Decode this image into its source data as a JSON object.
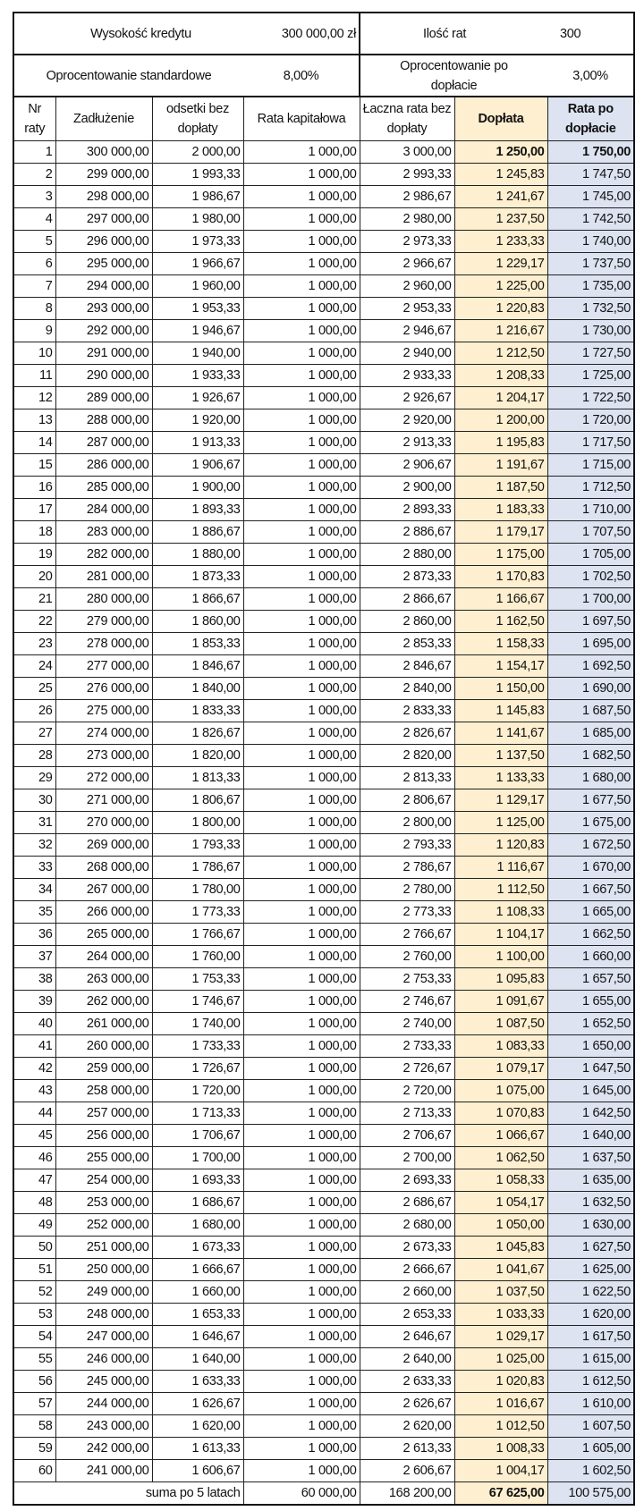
{
  "summary": {
    "loan_label": "Wysokość kredytu",
    "loan_value": "300 000,00 zł",
    "installments_label": "Ilość rat",
    "installments_value": "300",
    "std_rate_label": "Oprocentowanie standardowe",
    "std_rate_value": "8,00%",
    "new_rate_label": "Oprocentowanie po dopłacie",
    "new_rate_value": "3,00%"
  },
  "headers": [
    "Nr raty",
    "Zadłużenie",
    "odsetki bez dopłaty",
    "Rata kapitałowa",
    "Łaczna rata bez dopłaty",
    "Dopłata",
    "Rata po dopłacie"
  ],
  "colors": {
    "doplata": "#fdefcf",
    "rata_po_doplacie": "#dde3f1"
  },
  "rows": [
    [
      "1",
      "300 000,00",
      "2 000,00",
      "1 000,00",
      "3 000,00",
      "1 250,00",
      "1 750,00"
    ],
    [
      "2",
      "299 000,00",
      "1 993,33",
      "1 000,00",
      "2 993,33",
      "1 245,83",
      "1 747,50"
    ],
    [
      "3",
      "298 000,00",
      "1 986,67",
      "1 000,00",
      "2 986,67",
      "1 241,67",
      "1 745,00"
    ],
    [
      "4",
      "297 000,00",
      "1 980,00",
      "1 000,00",
      "2 980,00",
      "1 237,50",
      "1 742,50"
    ],
    [
      "5",
      "296 000,00",
      "1 973,33",
      "1 000,00",
      "2 973,33",
      "1 233,33",
      "1 740,00"
    ],
    [
      "6",
      "295 000,00",
      "1 966,67",
      "1 000,00",
      "2 966,67",
      "1 229,17",
      "1 737,50"
    ],
    [
      "7",
      "294 000,00",
      "1 960,00",
      "1 000,00",
      "2 960,00",
      "1 225,00",
      "1 735,00"
    ],
    [
      "8",
      "293 000,00",
      "1 953,33",
      "1 000,00",
      "2 953,33",
      "1 220,83",
      "1 732,50"
    ],
    [
      "9",
      "292 000,00",
      "1 946,67",
      "1 000,00",
      "2 946,67",
      "1 216,67",
      "1 730,00"
    ],
    [
      "10",
      "291 000,00",
      "1 940,00",
      "1 000,00",
      "2 940,00",
      "1 212,50",
      "1 727,50"
    ],
    [
      "11",
      "290 000,00",
      "1 933,33",
      "1 000,00",
      "2 933,33",
      "1 208,33",
      "1 725,00"
    ],
    [
      "12",
      "289 000,00",
      "1 926,67",
      "1 000,00",
      "2 926,67",
      "1 204,17",
      "1 722,50"
    ],
    [
      "13",
      "288 000,00",
      "1 920,00",
      "1 000,00",
      "2 920,00",
      "1 200,00",
      "1 720,00"
    ],
    [
      "14",
      "287 000,00",
      "1 913,33",
      "1 000,00",
      "2 913,33",
      "1 195,83",
      "1 717,50"
    ],
    [
      "15",
      "286 000,00",
      "1 906,67",
      "1 000,00",
      "2 906,67",
      "1 191,67",
      "1 715,00"
    ],
    [
      "16",
      "285 000,00",
      "1 900,00",
      "1 000,00",
      "2 900,00",
      "1 187,50",
      "1 712,50"
    ],
    [
      "17",
      "284 000,00",
      "1 893,33",
      "1 000,00",
      "2 893,33",
      "1 183,33",
      "1 710,00"
    ],
    [
      "18",
      "283 000,00",
      "1 886,67",
      "1 000,00",
      "2 886,67",
      "1 179,17",
      "1 707,50"
    ],
    [
      "19",
      "282 000,00",
      "1 880,00",
      "1 000,00",
      "2 880,00",
      "1 175,00",
      "1 705,00"
    ],
    [
      "20",
      "281 000,00",
      "1 873,33",
      "1 000,00",
      "2 873,33",
      "1 170,83",
      "1 702,50"
    ],
    [
      "21",
      "280 000,00",
      "1 866,67",
      "1 000,00",
      "2 866,67",
      "1 166,67",
      "1 700,00"
    ],
    [
      "22",
      "279 000,00",
      "1 860,00",
      "1 000,00",
      "2 860,00",
      "1 162,50",
      "1 697,50"
    ],
    [
      "23",
      "278 000,00",
      "1 853,33",
      "1 000,00",
      "2 853,33",
      "1 158,33",
      "1 695,00"
    ],
    [
      "24",
      "277 000,00",
      "1 846,67",
      "1 000,00",
      "2 846,67",
      "1 154,17",
      "1 692,50"
    ],
    [
      "25",
      "276 000,00",
      "1 840,00",
      "1 000,00",
      "2 840,00",
      "1 150,00",
      "1 690,00"
    ],
    [
      "26",
      "275 000,00",
      "1 833,33",
      "1 000,00",
      "2 833,33",
      "1 145,83",
      "1 687,50"
    ],
    [
      "27",
      "274 000,00",
      "1 826,67",
      "1 000,00",
      "2 826,67",
      "1 141,67",
      "1 685,00"
    ],
    [
      "28",
      "273 000,00",
      "1 820,00",
      "1 000,00",
      "2 820,00",
      "1 137,50",
      "1 682,50"
    ],
    [
      "29",
      "272 000,00",
      "1 813,33",
      "1 000,00",
      "2 813,33",
      "1 133,33",
      "1 680,00"
    ],
    [
      "30",
      "271 000,00",
      "1 806,67",
      "1 000,00",
      "2 806,67",
      "1 129,17",
      "1 677,50"
    ],
    [
      "31",
      "270 000,00",
      "1 800,00",
      "1 000,00",
      "2 800,00",
      "1 125,00",
      "1 675,00"
    ],
    [
      "32",
      "269 000,00",
      "1 793,33",
      "1 000,00",
      "2 793,33",
      "1 120,83",
      "1 672,50"
    ],
    [
      "33",
      "268 000,00",
      "1 786,67",
      "1 000,00",
      "2 786,67",
      "1 116,67",
      "1 670,00"
    ],
    [
      "34",
      "267 000,00",
      "1 780,00",
      "1 000,00",
      "2 780,00",
      "1 112,50",
      "1 667,50"
    ],
    [
      "35",
      "266 000,00",
      "1 773,33",
      "1 000,00",
      "2 773,33",
      "1 108,33",
      "1 665,00"
    ],
    [
      "36",
      "265 000,00",
      "1 766,67",
      "1 000,00",
      "2 766,67",
      "1 104,17",
      "1 662,50"
    ],
    [
      "37",
      "264 000,00",
      "1 760,00",
      "1 000,00",
      "2 760,00",
      "1 100,00",
      "1 660,00"
    ],
    [
      "38",
      "263 000,00",
      "1 753,33",
      "1 000,00",
      "2 753,33",
      "1 095,83",
      "1 657,50"
    ],
    [
      "39",
      "262 000,00",
      "1 746,67",
      "1 000,00",
      "2 746,67",
      "1 091,67",
      "1 655,00"
    ],
    [
      "40",
      "261 000,00",
      "1 740,00",
      "1 000,00",
      "2 740,00",
      "1 087,50",
      "1 652,50"
    ],
    [
      "41",
      "260 000,00",
      "1 733,33",
      "1 000,00",
      "2 733,33",
      "1 083,33",
      "1 650,00"
    ],
    [
      "42",
      "259 000,00",
      "1 726,67",
      "1 000,00",
      "2 726,67",
      "1 079,17",
      "1 647,50"
    ],
    [
      "43",
      "258 000,00",
      "1 720,00",
      "1 000,00",
      "2 720,00",
      "1 075,00",
      "1 645,00"
    ],
    [
      "44",
      "257 000,00",
      "1 713,33",
      "1 000,00",
      "2 713,33",
      "1 070,83",
      "1 642,50"
    ],
    [
      "45",
      "256 000,00",
      "1 706,67",
      "1 000,00",
      "2 706,67",
      "1 066,67",
      "1 640,00"
    ],
    [
      "46",
      "255 000,00",
      "1 700,00",
      "1 000,00",
      "2 700,00",
      "1 062,50",
      "1 637,50"
    ],
    [
      "47",
      "254 000,00",
      "1 693,33",
      "1 000,00",
      "2 693,33",
      "1 058,33",
      "1 635,00"
    ],
    [
      "48",
      "253 000,00",
      "1 686,67",
      "1 000,00",
      "2 686,67",
      "1 054,17",
      "1 632,50"
    ],
    [
      "49",
      "252 000,00",
      "1 680,00",
      "1 000,00",
      "2 680,00",
      "1 050,00",
      "1 630,00"
    ],
    [
      "50",
      "251 000,00",
      "1 673,33",
      "1 000,00",
      "2 673,33",
      "1 045,83",
      "1 627,50"
    ],
    [
      "51",
      "250 000,00",
      "1 666,67",
      "1 000,00",
      "2 666,67",
      "1 041,67",
      "1 625,00"
    ],
    [
      "52",
      "249 000,00",
      "1 660,00",
      "1 000,00",
      "2 660,00",
      "1 037,50",
      "1 622,50"
    ],
    [
      "53",
      "248 000,00",
      "1 653,33",
      "1 000,00",
      "2 653,33",
      "1 033,33",
      "1 620,00"
    ],
    [
      "54",
      "247 000,00",
      "1 646,67",
      "1 000,00",
      "2 646,67",
      "1 029,17",
      "1 617,50"
    ],
    [
      "55",
      "246 000,00",
      "1 640,00",
      "1 000,00",
      "2 640,00",
      "1 025,00",
      "1 615,00"
    ],
    [
      "56",
      "245 000,00",
      "1 633,33",
      "1 000,00",
      "2 633,33",
      "1 020,83",
      "1 612,50"
    ],
    [
      "57",
      "244 000,00",
      "1 626,67",
      "1 000,00",
      "2 626,67",
      "1 016,67",
      "1 610,00"
    ],
    [
      "58",
      "243 000,00",
      "1 620,00",
      "1 000,00",
      "2 620,00",
      "1 012,50",
      "1 607,50"
    ],
    [
      "59",
      "242 000,00",
      "1 613,33",
      "1 000,00",
      "2 613,33",
      "1 008,33",
      "1 605,00"
    ],
    [
      "60",
      "241 000,00",
      "1 606,67",
      "1 000,00",
      "2 606,67",
      "1 004,17",
      "1 602,50"
    ]
  ],
  "totals": {
    "label": "suma po 5 latach",
    "rata_kapitalowa": "60 000,00",
    "laczna_rata": "168 200,00",
    "doplata": "67 625,00",
    "rata_po_doplacie": "100 575,00"
  }
}
